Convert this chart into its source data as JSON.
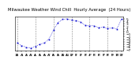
{
  "title": "Milwaukee Weather Wind Chill  Hourly Average  (24 Hours)",
  "x_hours": [
    0,
    1,
    2,
    3,
    4,
    5,
    6,
    7,
    8,
    9,
    10,
    11,
    12,
    13,
    14,
    15,
    16,
    17,
    18,
    19,
    20,
    21,
    22,
    23
  ],
  "y_values": [
    -4.5,
    -5.5,
    -6.2,
    -6.5,
    -5.8,
    -5.0,
    -4.5,
    -3.0,
    0.5,
    3.5,
    4.8,
    5.0,
    4.5,
    4.2,
    3.8,
    2.5,
    2.2,
    2.3,
    1.5,
    1.8,
    1.2,
    1.5,
    1.0,
    4.8
  ],
  "line_color": "#0000cc",
  "bg_color": "#ffffff",
  "grid_color": "#888888",
  "ylim": [
    -7.5,
    6.0
  ],
  "yticks": [
    5,
    4,
    3,
    2,
    1,
    0,
    -1,
    -2,
    -3,
    -4,
    -5,
    -6,
    -7
  ],
  "xtick_labels_row1": [
    "12",
    "1",
    "2",
    "3",
    "4",
    "5",
    "6",
    "7",
    "8",
    "9",
    "10",
    "11",
    "12",
    "1",
    "2",
    "3",
    "4",
    "5",
    "6",
    "7",
    "8",
    "9",
    "10",
    "11"
  ],
  "xtick_labels_row2": [
    "A",
    "M",
    "A",
    "M",
    "A",
    "M",
    "A",
    "M",
    "A",
    "M",
    "A",
    "M",
    "P",
    "M",
    "P",
    "M",
    "P",
    "M",
    "P",
    "M",
    "P",
    "M",
    "P",
    "M"
  ],
  "vgrid_positions": [
    0,
    4,
    8,
    12,
    16,
    20
  ],
  "title_fontsize": 3.8,
  "tick_fontsize": 3.2,
  "marker_size": 1.2,
  "line_width": 0.5
}
